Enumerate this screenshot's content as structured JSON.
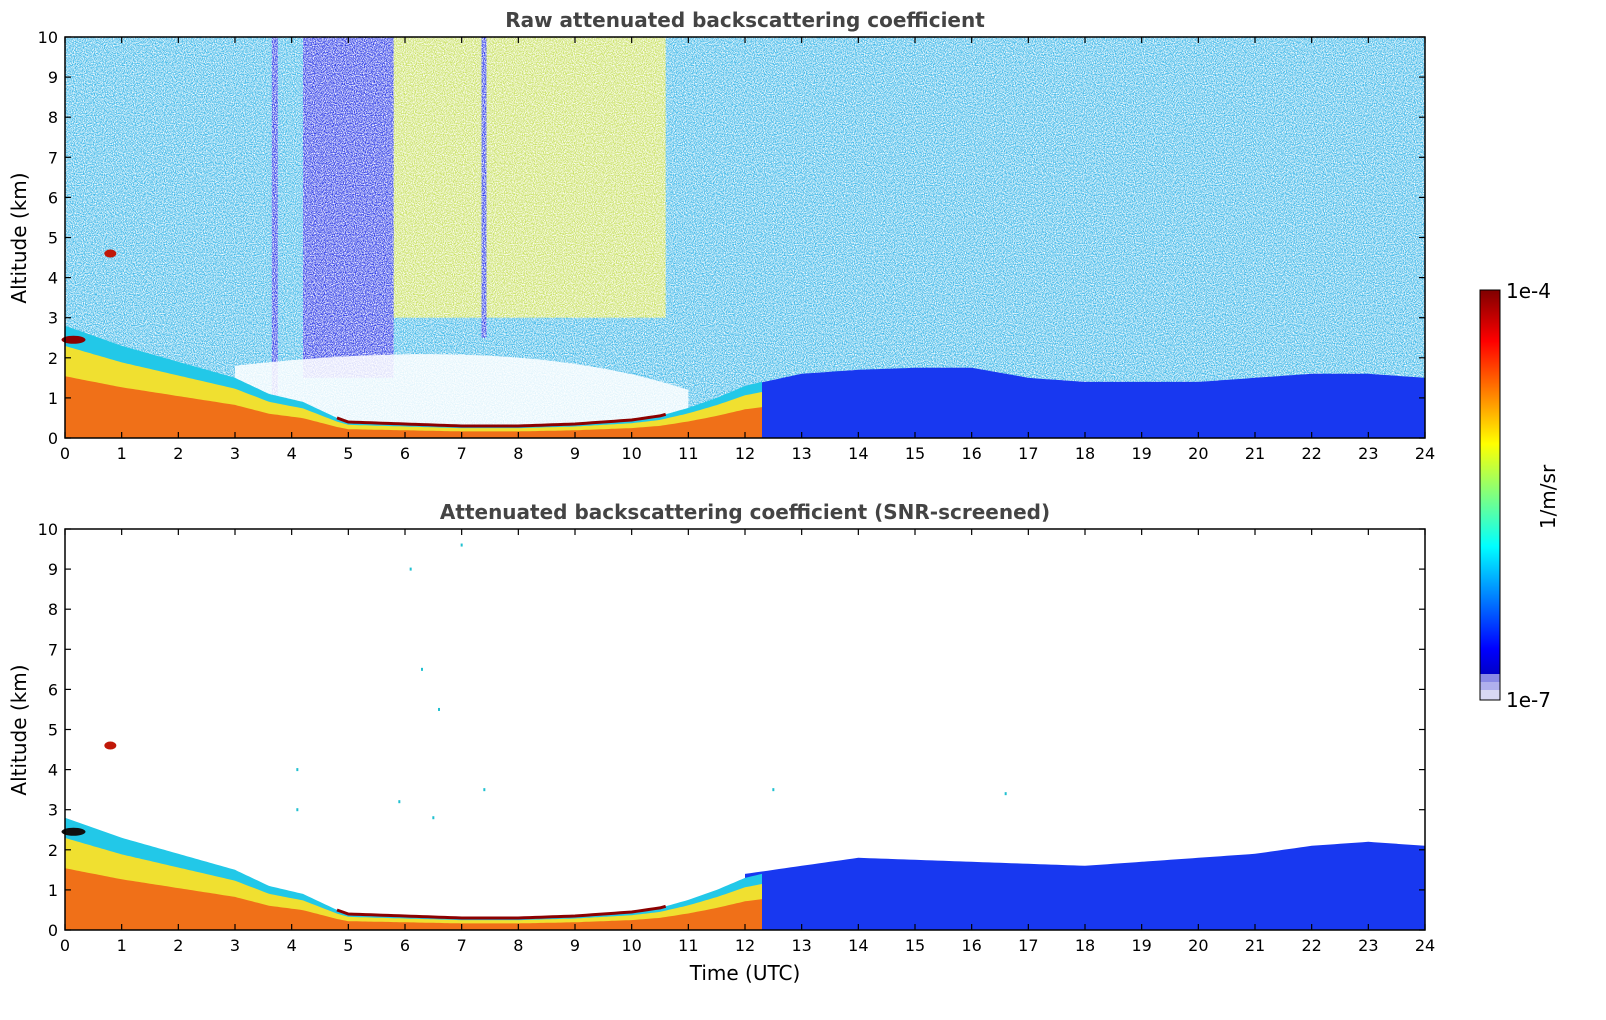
{
  "figure": {
    "xlabel": "Time (UTC)",
    "colorbar": {
      "label": "1/m/sr",
      "max_label": "1e-4",
      "min_label": "1e-7",
      "scale": "log",
      "colormap": "jet",
      "low_end_colors": [
        "#d8d8f4",
        "#b0b0ee",
        "#8a8ae6"
      ],
      "range": [
        1e-07,
        0.0001
      ]
    }
  },
  "chart_data": [
    {
      "type": "heatmap",
      "title": "Raw attenuated backscattering coefficient",
      "xlabel": "",
      "ylabel": "Altitude (km)",
      "xlim": [
        0,
        24
      ],
      "ylim": [
        0,
        10
      ],
      "xticks": [
        "0",
        "1",
        "2",
        "3",
        "4",
        "5",
        "6",
        "7",
        "8",
        "9",
        "10",
        "11",
        "12",
        "13",
        "14",
        "15",
        "16",
        "17",
        "18",
        "19",
        "20",
        "21",
        "22",
        "23",
        "24"
      ],
      "yticks": [
        "0",
        "1",
        "2",
        "3",
        "4",
        "5",
        "6",
        "7",
        "8",
        "9",
        "10"
      ],
      "grid": false,
      "layers": {
        "boundary_layer_top_km": {
          "x": [
            0,
            1,
            2,
            3,
            3.6,
            4.2,
            4.8,
            5,
            6,
            7,
            8,
            9,
            10,
            10.5,
            11,
            11.5,
            12,
            12.3
          ],
          "y": [
            2.8,
            2.3,
            1.9,
            1.5,
            1.1,
            0.9,
            0.5,
            0.4,
            0.35,
            0.3,
            0.3,
            0.35,
            0.45,
            0.55,
            0.75,
            1.0,
            1.3,
            1.4
          ]
        },
        "clear_air_top_km_after_12h": {
          "x": [
            12,
            13,
            14,
            15,
            16,
            16.6,
            17,
            18,
            19,
            20,
            21,
            22,
            23,
            24
          ],
          "y": [
            1.3,
            1.6,
            1.7,
            1.75,
            1.75,
            1.6,
            1.5,
            1.4,
            1.4,
            1.4,
            1.5,
            1.6,
            1.6,
            1.5
          ]
        },
        "noise_band_tops_km": {
          "x": [
            0,
            3.5,
            5,
            8,
            10.5,
            12.5,
            15,
            20,
            24
          ],
          "y": [
            10,
            10,
            10,
            10,
            10,
            10,
            10,
            10,
            10
          ]
        },
        "max_signal_band_hours": [
          5.0,
          10.6
        ],
        "notable_features": [
          "elevated aerosol layer near 2.5 km at 0 h",
          "small cloud near 4.6 km at 0.8 h",
          "thin vertical low-signal strips near 3.7 h, 4.2-5.8 h, 7.4 h"
        ]
      }
    },
    {
      "type": "heatmap",
      "title": "Attenuated backscattering coefficient (SNR-screened)",
      "xlabel": "Time (UTC)",
      "ylabel": "Altitude (km)",
      "xlim": [
        0,
        24
      ],
      "ylim": [
        0,
        10
      ],
      "xticks": [
        "0",
        "1",
        "2",
        "3",
        "4",
        "5",
        "6",
        "7",
        "8",
        "9",
        "10",
        "11",
        "12",
        "13",
        "14",
        "15",
        "16",
        "17",
        "18",
        "19",
        "20",
        "21",
        "22",
        "23",
        "24"
      ],
      "yticks": [
        "0",
        "1",
        "2",
        "3",
        "4",
        "5",
        "6",
        "7",
        "8",
        "9",
        "10"
      ],
      "grid": false,
      "layers": {
        "boundary_layer_top_km": {
          "x": [
            0,
            1,
            2,
            3,
            3.6,
            4.2,
            4.8,
            5,
            6,
            7,
            8,
            9,
            10,
            10.5,
            11,
            11.5,
            12,
            12.3
          ],
          "y": [
            2.8,
            2.3,
            1.9,
            1.5,
            1.1,
            0.9,
            0.5,
            0.4,
            0.35,
            0.3,
            0.3,
            0.35,
            0.45,
            0.55,
            0.75,
            1.0,
            1.3,
            1.4
          ]
        },
        "screened_top_km_after_12h": {
          "x": [
            12,
            13,
            14,
            15,
            16,
            17,
            18,
            19,
            20,
            21,
            22,
            23,
            24
          ],
          "y": [
            1.4,
            1.6,
            1.8,
            1.75,
            1.7,
            1.65,
            1.6,
            1.7,
            1.8,
            1.9,
            2.1,
            2.2,
            2.1
          ]
        },
        "isolated_points": {
          "x": [
            4.1,
            4.1,
            5.9,
            6.1,
            6.3,
            6.5,
            6.6,
            7.0,
            7.4,
            12.5,
            16.6
          ],
          "y": [
            3.0,
            4.0,
            3.2,
            9.0,
            6.5,
            2.8,
            5.5,
            9.6,
            3.5,
            3.5,
            3.4
          ]
        }
      }
    }
  ]
}
